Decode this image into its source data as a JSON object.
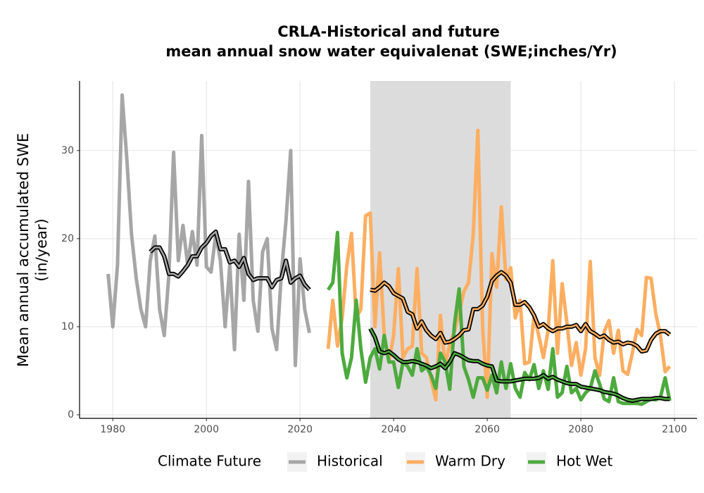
{
  "chart_data": {
    "type": "line",
    "title": [
      "CRLA-Historical and future",
      "mean annual snow water equivalenat (SWE;inches/Yr)"
    ],
    "y_label": [
      "Mean annual accumulated SWE",
      "(in/year)"
    ],
    "legend_title": "Climate Future",
    "xlim": [
      1972.9,
      2104.8
    ],
    "ylim": [
      -0.4,
      37.9
    ],
    "xticks": [
      1980,
      2000,
      2020,
      2040,
      2060,
      2080,
      2100
    ],
    "yticks": [
      0,
      10,
      20,
      30
    ],
    "grid": true,
    "shade": [
      2035,
      2065
    ],
    "shade_color": "#dcdcdc",
    "trend_color": "#000000",
    "series": [
      {
        "name": "Historical",
        "color": "#a6a6a6",
        "x": [
          1979,
          1980,
          1981,
          1982,
          1983,
          1984,
          1985,
          1986,
          1987,
          1988,
          1989,
          1990,
          1991,
          1992,
          1993,
          1994,
          1995,
          1996,
          1997,
          1998,
          1999,
          2000,
          2001,
          2002,
          2003,
          2004,
          2005,
          2006,
          2007,
          2008,
          2009,
          2010,
          2011,
          2012,
          2013,
          2014,
          2015,
          2016,
          2017,
          2018,
          2019,
          2020,
          2021,
          2022
        ],
        "values": [
          16,
          10,
          17,
          36.3,
          29,
          20.5,
          15.5,
          12,
          10,
          17.5,
          20.3,
          12,
          9,
          16,
          29.8,
          17.5,
          21.5,
          17,
          20.8,
          17,
          31.7,
          16.8,
          16.2,
          20.5,
          17.5,
          10,
          17,
          7.4,
          20.5,
          13,
          26.5,
          13,
          9.5,
          18.5,
          20,
          9.8,
          7.4,
          16,
          22,
          30,
          5.6,
          17.7,
          12,
          9.3
        ],
        "trend_x": [
          1988,
          1989,
          1990,
          1991,
          1992,
          1993,
          1994,
          1995,
          1996,
          1997,
          1998,
          1999,
          2000,
          2001,
          2002,
          2003,
          2004,
          2005,
          2006,
          2007,
          2008,
          2009,
          2010,
          2011,
          2012,
          2013,
          2014,
          2015,
          2016,
          2017,
          2018,
          2019,
          2020,
          2021,
          2022
        ],
        "trend": [
          18.5,
          19,
          19,
          18,
          16,
          16,
          15.7,
          16.3,
          17,
          18,
          18,
          19,
          19.5,
          20.3,
          20.8,
          18.8,
          18.8,
          17.3,
          17.5,
          16.8,
          17.8,
          16,
          15.3,
          15.5,
          15.5,
          15.5,
          14.5,
          15.3,
          15.5,
          17.5,
          15,
          15.5,
          15.8,
          14.8,
          14.2
        ]
      },
      {
        "name": "Warm Dry",
        "color": "#fdae61",
        "x": [
          2026,
          2027,
          2028,
          2029,
          2030,
          2031,
          2032,
          2033,
          2034,
          2035,
          2036,
          2037,
          2038,
          2039,
          2040,
          2041,
          2042,
          2043,
          2044,
          2045,
          2046,
          2047,
          2048,
          2049,
          2050,
          2051,
          2052,
          2053,
          2054,
          2055,
          2056,
          2057,
          2058,
          2059,
          2060,
          2061,
          2062,
          2063,
          2064,
          2065,
          2066,
          2067,
          2068,
          2069,
          2070,
          2071,
          2072,
          2073,
          2074,
          2075,
          2076,
          2077,
          2078,
          2079,
          2080,
          2081,
          2082,
          2083,
          2084,
          2085,
          2086,
          2087,
          2088,
          2089,
          2090,
          2091,
          2092,
          2093,
          2094,
          2095,
          2096,
          2097,
          2098,
          2099
        ],
        "values": [
          7.5,
          13,
          7.8,
          11,
          17,
          20.6,
          11,
          12,
          22.6,
          22.9,
          10,
          18.4,
          9,
          6,
          9,
          16.6,
          6.5,
          7.5,
          7.8,
          16.6,
          7,
          6.5,
          4,
          1.7,
          11.3,
          5.5,
          8,
          9.5,
          11.5,
          14,
          15,
          20.4,
          32.3,
          10,
          2,
          18.3,
          14.5,
          23.6,
          15.4,
          16.7,
          11,
          13,
          5.8,
          6,
          11.3,
          9,
          6.5,
          9.6,
          17.5,
          7,
          14.9,
          10.5,
          5.6,
          8.2,
          4.5,
          7.5,
          17.4,
          6.5,
          4.5,
          9.5,
          10.7,
          7,
          9.6,
          5,
          4.6,
          7,
          9.7,
          9,
          15.6,
          15.5,
          11.5,
          9,
          4.9,
          5.5
        ],
        "trend_x": [
          2035,
          2036,
          2037,
          2038,
          2039,
          2040,
          2041,
          2042,
          2043,
          2044,
          2045,
          2046,
          2047,
          2048,
          2049,
          2050,
          2051,
          2052,
          2053,
          2054,
          2055,
          2056,
          2057,
          2058,
          2059,
          2060,
          2061,
          2062,
          2063,
          2064,
          2065,
          2066,
          2067,
          2068,
          2069,
          2070,
          2071,
          2072,
          2073,
          2074,
          2075,
          2076,
          2077,
          2078,
          2079,
          2080,
          2081,
          2082,
          2083,
          2084,
          2085,
          2086,
          2087,
          2088,
          2089,
          2090,
          2091,
          2092,
          2093,
          2094,
          2095,
          2096,
          2097,
          2098,
          2099
        ],
        "trend": [
          14.2,
          14.1,
          14.5,
          15,
          14.6,
          13.8,
          13.5,
          13.2,
          11.7,
          11.4,
          9.8,
          10.6,
          9.6,
          9,
          8.6,
          9.3,
          8.2,
          8.3,
          8.6,
          9,
          9.6,
          9.7,
          12,
          12,
          12.4,
          13.4,
          15.2,
          15.8,
          16.2,
          15.8,
          15,
          12.5,
          12.5,
          12.8,
          12.2,
          11.3,
          10,
          10.3,
          9.8,
          9.5,
          9.8,
          9.8,
          10,
          10,
          10.2,
          9.5,
          10.3,
          9.5,
          9.2,
          8.8,
          9,
          8.5,
          8.2,
          8.3,
          8,
          8.2,
          8.1,
          7.8,
          7.2,
          7.3,
          8.5,
          9.2,
          9.5,
          9.5,
          9.1
        ]
      },
      {
        "name": "Hot Wet",
        "color": "#4daa3e",
        "x": [
          2026,
          2027,
          2028,
          2029,
          2030,
          2031,
          2032,
          2033,
          2034,
          2035,
          2036,
          2037,
          2038,
          2039,
          2040,
          2041,
          2042,
          2043,
          2044,
          2045,
          2046,
          2047,
          2048,
          2049,
          2050,
          2051,
          2052,
          2053,
          2054,
          2055,
          2056,
          2057,
          2058,
          2059,
          2060,
          2061,
          2062,
          2063,
          2064,
          2065,
          2066,
          2067,
          2068,
          2069,
          2070,
          2071,
          2072,
          2073,
          2074,
          2075,
          2076,
          2077,
          2078,
          2079,
          2080,
          2081,
          2082,
          2083,
          2084,
          2085,
          2086,
          2087,
          2088,
          2089,
          2090,
          2091,
          2092,
          2093,
          2094,
          2095,
          2096,
          2097,
          2098,
          2099
        ],
        "values": [
          14.2,
          15,
          20.7,
          7,
          4.2,
          6.5,
          13,
          7.5,
          3.7,
          6.5,
          7.5,
          5.2,
          9,
          6,
          6,
          3.1,
          6,
          5.5,
          4.5,
          7.5,
          5,
          5.5,
          4.5,
          3,
          7,
          6,
          2.9,
          10.3,
          14.3,
          5.5,
          4,
          2,
          4.2,
          4.2,
          2.8,
          4.5,
          2.5,
          6,
          3,
          5.8,
          3,
          2,
          4.8,
          4,
          5.7,
          3,
          5,
          2.9,
          7.5,
          2,
          2.5,
          5.5,
          2.5,
          3,
          1.7,
          2.5,
          3,
          5,
          3.5,
          1.8,
          1.5,
          4.2,
          1.5,
          1.3,
          1.3,
          1.3,
          1.3,
          1.2,
          1.5,
          1.8,
          1.7,
          2,
          4.2,
          1.6
        ],
        "trend_x": [
          2035,
          2036,
          2037,
          2038,
          2039,
          2040,
          2041,
          2042,
          2043,
          2044,
          2045,
          2046,
          2047,
          2048,
          2049,
          2050,
          2051,
          2052,
          2053,
          2054,
          2055,
          2056,
          2057,
          2058,
          2059,
          2060,
          2061,
          2062,
          2063,
          2064,
          2065,
          2066,
          2067,
          2068,
          2069,
          2070,
          2071,
          2072,
          2073,
          2074,
          2075,
          2076,
          2077,
          2078,
          2079,
          2080,
          2081,
          2082,
          2083,
          2084,
          2085,
          2086,
          2087,
          2088,
          2089,
          2090,
          2091,
          2092,
          2093,
          2094,
          2095,
          2096,
          2097,
          2098,
          2099
        ],
        "trend": [
          9.8,
          8.8,
          7.2,
          7,
          7.2,
          6.8,
          6.3,
          6,
          6,
          6.1,
          6,
          5.8,
          5.6,
          5.3,
          5.5,
          5.8,
          5.3,
          6,
          7,
          6.8,
          6.5,
          6.2,
          6.1,
          6.1,
          5.8,
          5.6,
          5.5,
          3.9,
          3.8,
          3.8,
          3.8,
          3.9,
          4,
          4.1,
          4.1,
          4.1,
          4.2,
          4.5,
          4.1,
          4.3,
          4,
          3.8,
          3.6,
          3.5,
          3.5,
          3.2,
          3.1,
          3,
          2.9,
          2.8,
          2.6,
          2.5,
          2.4,
          2.2,
          1.9,
          1.7,
          1.6,
          1.7,
          1.8,
          1.8,
          1.8,
          1.9,
          1.9,
          1.8,
          1.8
        ]
      }
    ]
  }
}
